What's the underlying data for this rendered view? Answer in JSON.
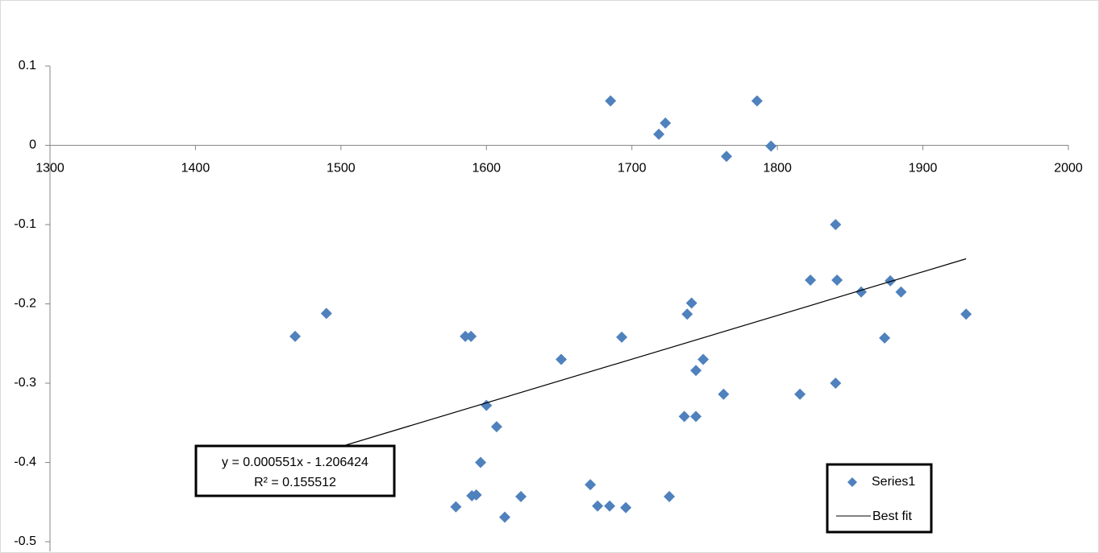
{
  "chart_data": {
    "type": "scatter",
    "series": [
      {
        "name": "Series1",
        "color": "#4f81bd",
        "x": [
          1685.3,
          1718.5,
          1723,
          1765,
          1786,
          1795.6,
          1468.5,
          1490,
          1585.5,
          1589.4,
          1600,
          1607,
          1596,
          1590,
          1593,
          1579,
          1612.6,
          1623.7,
          1651.4,
          1671.4,
          1676.4,
          1684.7,
          1695.8,
          1693,
          1725.7,
          1736,
          1744,
          1738,
          1741,
          1744,
          1749,
          1763,
          1815.5,
          1822.7,
          1840,
          1841,
          1840,
          1857.6,
          1873.7,
          1877.6,
          1885,
          1929.7
        ],
        "values": [
          0.056,
          0.014,
          0.028,
          -0.014,
          0.056,
          -0.001,
          -0.241,
          -0.212,
          -0.241,
          -0.241,
          -0.328,
          -0.355,
          -0.4,
          -0.442,
          -0.441,
          -0.456,
          -0.469,
          -0.443,
          -0.27,
          -0.428,
          -0.455,
          -0.455,
          -0.457,
          -0.242,
          -0.443,
          -0.342,
          -0.342,
          -0.213,
          -0.199,
          -0.284,
          -0.27,
          -0.314,
          -0.314,
          -0.17,
          -0.1,
          -0.17,
          -0.3,
          -0.185,
          -0.243,
          -0.171,
          -0.185,
          -0.213
        ]
      }
    ],
    "trendline": {
      "name": "Best fit",
      "slope": 0.000551,
      "intercept": -1.206424,
      "r2": 0.155512,
      "equation": "y = 0.000551x - 1.206424",
      "r2_label": "R² = 0.155512"
    },
    "xlim": [
      1300,
      2000
    ],
    "xticks": [
      1300,
      1400,
      1500,
      1600,
      1700,
      1800,
      1900,
      2000
    ],
    "ylim": [
      -0.5,
      0.1
    ],
    "yticks": [
      0.1,
      0,
      -0.1,
      -0.2,
      -0.3,
      -0.4,
      -0.5
    ]
  }
}
